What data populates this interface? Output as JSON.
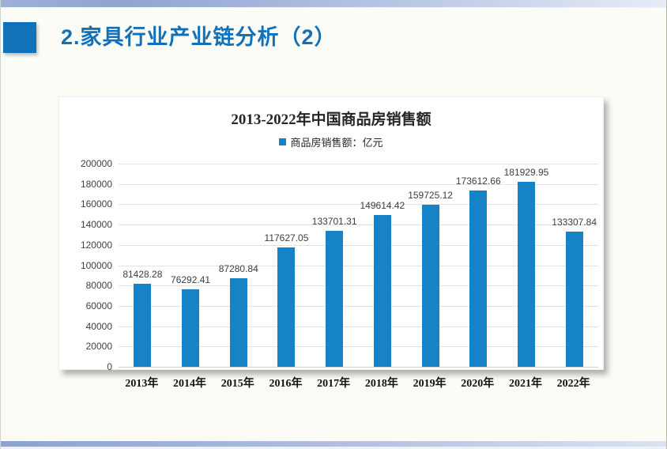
{
  "slide": {
    "title": "2.家具行业产业链分析（2）",
    "accent_color": "#1172BA",
    "title_color": "#1270B8",
    "band_color_left": "#8CA3CF",
    "band_color_right": "#DBE3F2"
  },
  "chart_data": {
    "type": "bar",
    "title": "2013-2022年中国商品房销售额",
    "legend": "商品房销售额：亿元",
    "legend_position": "top",
    "categories": [
      "2013年",
      "2014年",
      "2015年",
      "2016年",
      "2017年",
      "2018年",
      "2019年",
      "2020年",
      "2021年",
      "2022年"
    ],
    "values": [
      81428.28,
      76292.41,
      87280.84,
      117627.05,
      133701.31,
      149614.42,
      159725.12,
      173612.66,
      181929.95,
      133307.84
    ],
    "data_labels": [
      "81428.28",
      "76292.41",
      "87280.84",
      "117627.05",
      "133701.31",
      "149614.42",
      "159725.12",
      "173612.66",
      "181929.95",
      "133307.84"
    ],
    "xlabel": "",
    "ylabel": "",
    "ylim": [
      0,
      200000
    ],
    "ytick_step": 20000,
    "ytick_labels": [
      "0",
      "20000",
      "40000",
      "60000",
      "80000",
      "100000",
      "120000",
      "140000",
      "160000",
      "180000",
      "200000"
    ],
    "grid": true,
    "bar_color": "#1583C6",
    "gridline_color": "#E2E2E2"
  }
}
